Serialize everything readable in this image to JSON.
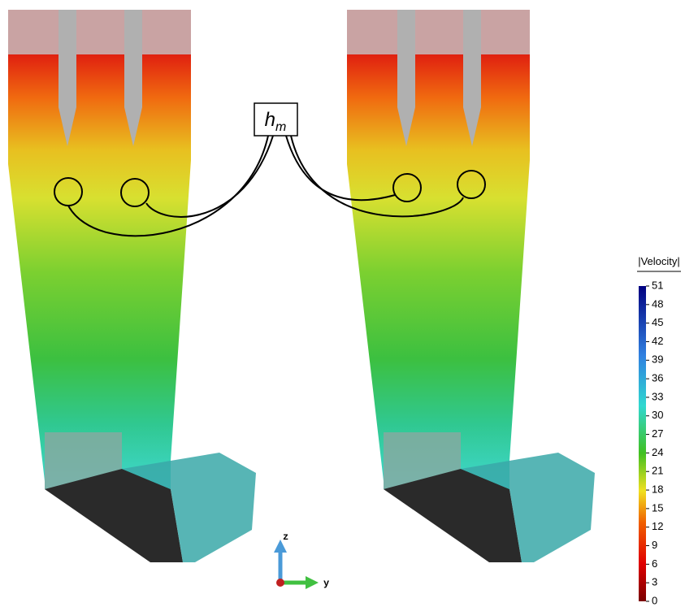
{
  "label": {
    "base": "h",
    "subscript": "m"
  },
  "colorbar": {
    "title": "|Velocity|",
    "lim": [
      0,
      51
    ],
    "ticks": [
      0,
      3,
      6,
      9,
      12,
      15,
      18,
      21,
      24,
      27,
      30,
      33,
      36,
      39,
      42,
      45,
      48,
      51
    ]
  },
  "axes": {
    "z": "z",
    "y": "y"
  }
}
